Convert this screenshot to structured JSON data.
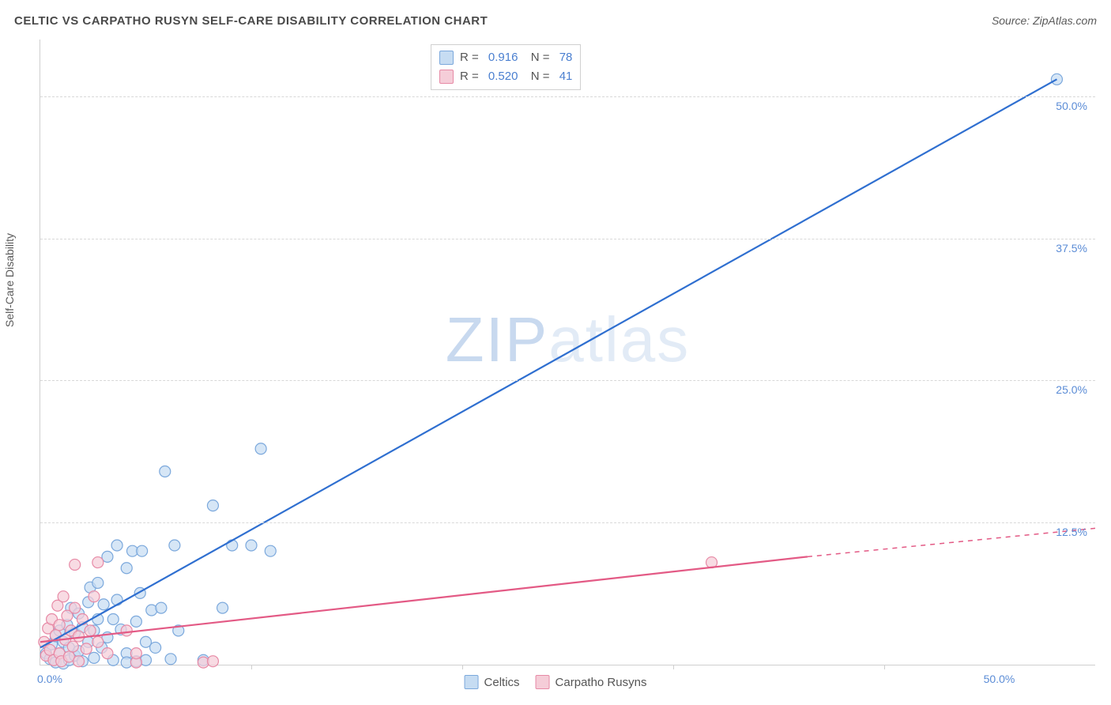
{
  "title": "CELTIC VS CARPATHO RUSYN SELF-CARE DISABILITY CORRELATION CHART",
  "source_label": "Source: ZipAtlas.com",
  "ylabel": "Self-Care Disability",
  "watermark": {
    "z": "ZIP",
    "rest": "atlas"
  },
  "chart": {
    "type": "scatter_with_regression",
    "xlim": [
      0,
      55
    ],
    "ylim": [
      0,
      55
    ],
    "xtick_labels": {
      "start": "0.0%",
      "end": "50.0%"
    },
    "xtick_end_value": 50,
    "xtick_marks": [
      11,
      22,
      33,
      44
    ],
    "ytick_labels": [
      {
        "value": 12.5,
        "label": "12.5%"
      },
      {
        "value": 25.0,
        "label": "25.0%"
      },
      {
        "value": 37.5,
        "label": "37.5%"
      },
      {
        "value": 50.0,
        "label": "50.0%"
      }
    ],
    "grid_color": "#d8d8d8",
    "axis_color": "#cfcfcf",
    "background_color": "#ffffff",
    "series": [
      {
        "name": "Celtics",
        "color_fill": "#c6dcf2",
        "color_stroke": "#7ba8dc",
        "line_color": "#2f6fd0",
        "R": "0.916",
        "N": "78",
        "reg_from": [
          0,
          1.5
        ],
        "reg_to": [
          53,
          51.5
        ],
        "dash_from": null,
        "dash_to": null,
        "points": [
          [
            0.3,
            1.0
          ],
          [
            0.5,
            0.5
          ],
          [
            0.6,
            1.8
          ],
          [
            0.8,
            0.2
          ],
          [
            0.8,
            2.5
          ],
          [
            1.0,
            1.0
          ],
          [
            1.0,
            3.0
          ],
          [
            1.2,
            0.1
          ],
          [
            1.2,
            2.0
          ],
          [
            1.4,
            3.5
          ],
          [
            1.5,
            0.4
          ],
          [
            1.5,
            1.5
          ],
          [
            1.6,
            5.0
          ],
          [
            1.8,
            2.8
          ],
          [
            1.8,
            0.8
          ],
          [
            2.0,
            4.5
          ],
          [
            2.0,
            1.2
          ],
          [
            2.2,
            0.3
          ],
          [
            2.2,
            3.3
          ],
          [
            2.5,
            5.5
          ],
          [
            2.5,
            2.0
          ],
          [
            2.6,
            6.8
          ],
          [
            2.8,
            3.0
          ],
          [
            2.8,
            0.6
          ],
          [
            3.0,
            4.0
          ],
          [
            3.0,
            7.2
          ],
          [
            3.2,
            1.5
          ],
          [
            3.3,
            5.3
          ],
          [
            3.5,
            2.4
          ],
          [
            3.5,
            9.5
          ],
          [
            3.8,
            4.0
          ],
          [
            3.8,
            0.4
          ],
          [
            4.0,
            5.7
          ],
          [
            4.0,
            10.5
          ],
          [
            4.2,
            3.1
          ],
          [
            4.5,
            8.5
          ],
          [
            4.5,
            1.0
          ],
          [
            4.5,
            0.2
          ],
          [
            4.8,
            10.0
          ],
          [
            5.0,
            3.8
          ],
          [
            5.0,
            0.3
          ],
          [
            5.2,
            6.3
          ],
          [
            5.3,
            10.0
          ],
          [
            5.5,
            2.0
          ],
          [
            5.5,
            0.4
          ],
          [
            5.8,
            4.8
          ],
          [
            6.0,
            1.5
          ],
          [
            6.3,
            5.0
          ],
          [
            6.5,
            17.0
          ],
          [
            6.8,
            0.5
          ],
          [
            7.0,
            10.5
          ],
          [
            7.2,
            3.0
          ],
          [
            8.5,
            0.4
          ],
          [
            9.0,
            14.0
          ],
          [
            9.5,
            5.0
          ],
          [
            10.0,
            10.5
          ],
          [
            11.0,
            10.5
          ],
          [
            11.5,
            19.0
          ],
          [
            12.0,
            10.0
          ],
          [
            53.0,
            51.5
          ]
        ]
      },
      {
        "name": "Carpatho Rusyns",
        "color_fill": "#f5cdd8",
        "color_stroke": "#e78aa6",
        "line_color": "#e35a85",
        "R": "0.520",
        "N": "41",
        "reg_from": [
          0,
          2.0
        ],
        "reg_to": [
          40,
          9.5
        ],
        "dash_from": [
          40,
          9.5
        ],
        "dash_to": [
          55,
          12.0
        ],
        "points": [
          [
            0.2,
            2.0
          ],
          [
            0.3,
            0.8
          ],
          [
            0.4,
            3.2
          ],
          [
            0.5,
            1.3
          ],
          [
            0.6,
            4.0
          ],
          [
            0.7,
            0.4
          ],
          [
            0.8,
            2.6
          ],
          [
            0.9,
            5.2
          ],
          [
            1.0,
            1.0
          ],
          [
            1.0,
            3.5
          ],
          [
            1.1,
            0.3
          ],
          [
            1.2,
            6.0
          ],
          [
            1.3,
            2.2
          ],
          [
            1.4,
            4.3
          ],
          [
            1.5,
            0.7
          ],
          [
            1.6,
            3.0
          ],
          [
            1.7,
            1.6
          ],
          [
            1.8,
            5.0
          ],
          [
            1.8,
            8.8
          ],
          [
            2.0,
            2.5
          ],
          [
            2.0,
            0.3
          ],
          [
            2.2,
            4.0
          ],
          [
            2.4,
            1.4
          ],
          [
            2.6,
            3.0
          ],
          [
            2.8,
            6.0
          ],
          [
            3.0,
            2.0
          ],
          [
            3.0,
            9.0
          ],
          [
            3.5,
            1.0
          ],
          [
            4.5,
            3.0
          ],
          [
            5.0,
            0.2
          ],
          [
            5.0,
            1.0
          ],
          [
            8.5,
            0.2
          ],
          [
            9.0,
            0.3
          ],
          [
            35.0,
            9.0
          ]
        ]
      }
    ]
  },
  "legend_bottom": [
    {
      "label": "Celtics",
      "series_idx": 0
    },
    {
      "label": "Carpatho Rusyns",
      "series_idx": 1
    }
  ],
  "point_radius": 7,
  "point_stroke_width": 1.2,
  "line_width": 2.2
}
